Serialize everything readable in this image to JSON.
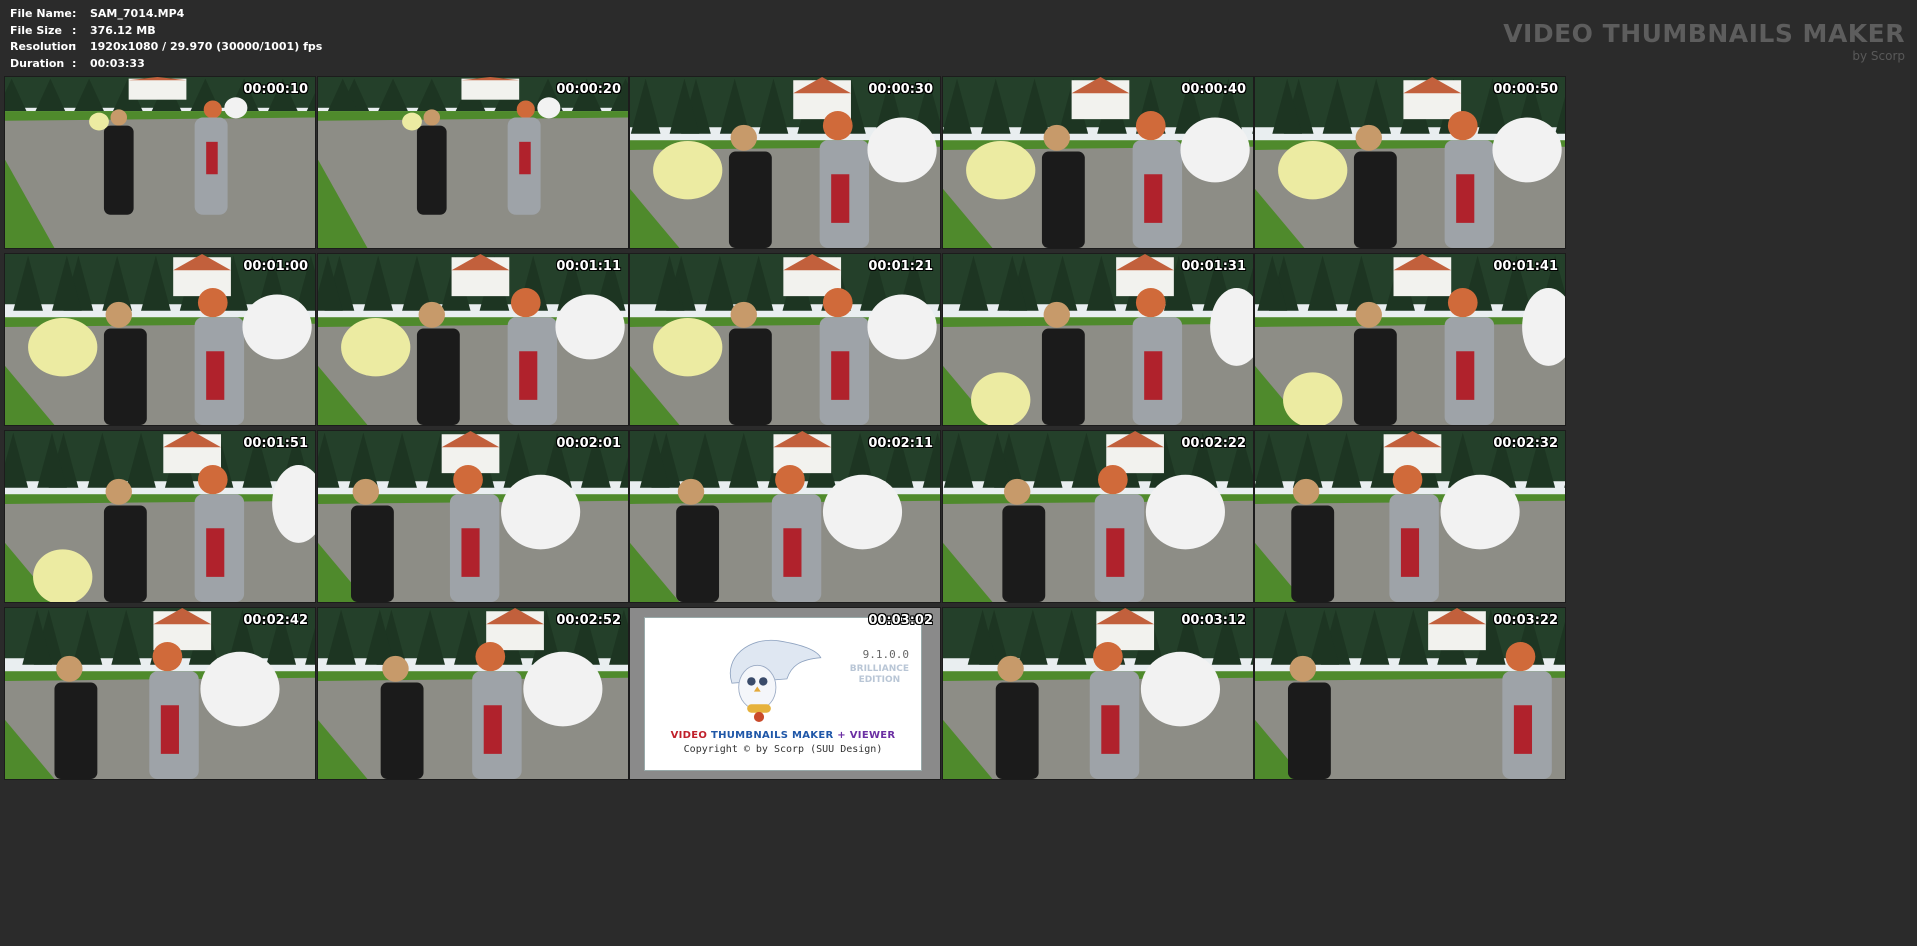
{
  "info": [
    {
      "key": "File Name",
      "sep": ":",
      "value": "SAM_7014.MP4"
    },
    {
      "key": "File Size",
      "sep": ":",
      "value": "376.12 MB"
    },
    {
      "key": "Resolution",
      "sep": ":",
      "value": "1920x1080 / 29.970 (30000/1001) fps"
    },
    {
      "key": "Duration",
      "sep": ":",
      "value": "00:03:33"
    }
  ],
  "brand": {
    "title": "VIDEO THUMBNAILS MAKER",
    "subtitle": "by Scorp"
  },
  "thumbnails": [
    {
      "time": "00:00:10",
      "scene": "wide"
    },
    {
      "time": "00:00:20",
      "scene": "wide"
    },
    {
      "time": "00:00:30",
      "scene": "close"
    },
    {
      "time": "00:00:40",
      "scene": "close"
    },
    {
      "time": "00:00:50",
      "scene": "close"
    },
    {
      "time": "00:01:00",
      "scene": "close"
    },
    {
      "time": "00:01:11",
      "scene": "close"
    },
    {
      "time": "00:01:21",
      "scene": "close"
    },
    {
      "time": "00:01:31",
      "scene": "mid"
    },
    {
      "time": "00:01:41",
      "scene": "mid"
    },
    {
      "time": "00:01:51",
      "scene": "mid"
    },
    {
      "time": "00:02:01",
      "scene": "blow"
    },
    {
      "time": "00:02:11",
      "scene": "blow"
    },
    {
      "time": "00:02:22",
      "scene": "blow"
    },
    {
      "time": "00:02:32",
      "scene": "blow"
    },
    {
      "time": "00:02:42",
      "scene": "blow"
    },
    {
      "time": "00:02:52",
      "scene": "blow"
    },
    {
      "time": "00:03:02",
      "scene": "splash"
    },
    {
      "time": "00:03:12",
      "scene": "blow"
    },
    {
      "time": "00:03:22",
      "scene": "end"
    }
  ],
  "splash": {
    "version": "9.1.0.0",
    "edition_line1": "BRILLIANCE",
    "edition_line2": "EDITION",
    "title_part1": "VIDEO",
    "title_part2": "THUMBNAILS MAKER",
    "title_part3": "+ VIEWER",
    "copyright": "Copyright © by Scorp (SUU Design)"
  },
  "colors": {
    "background": "#2b2b2b",
    "grass": "#4f8a2c",
    "road": "#8d8d86",
    "sky": "#e9eef0",
    "trees": "#24402a",
    "balloon_white": "#f2f2f2",
    "balloon_yellow": "#eceba2"
  }
}
